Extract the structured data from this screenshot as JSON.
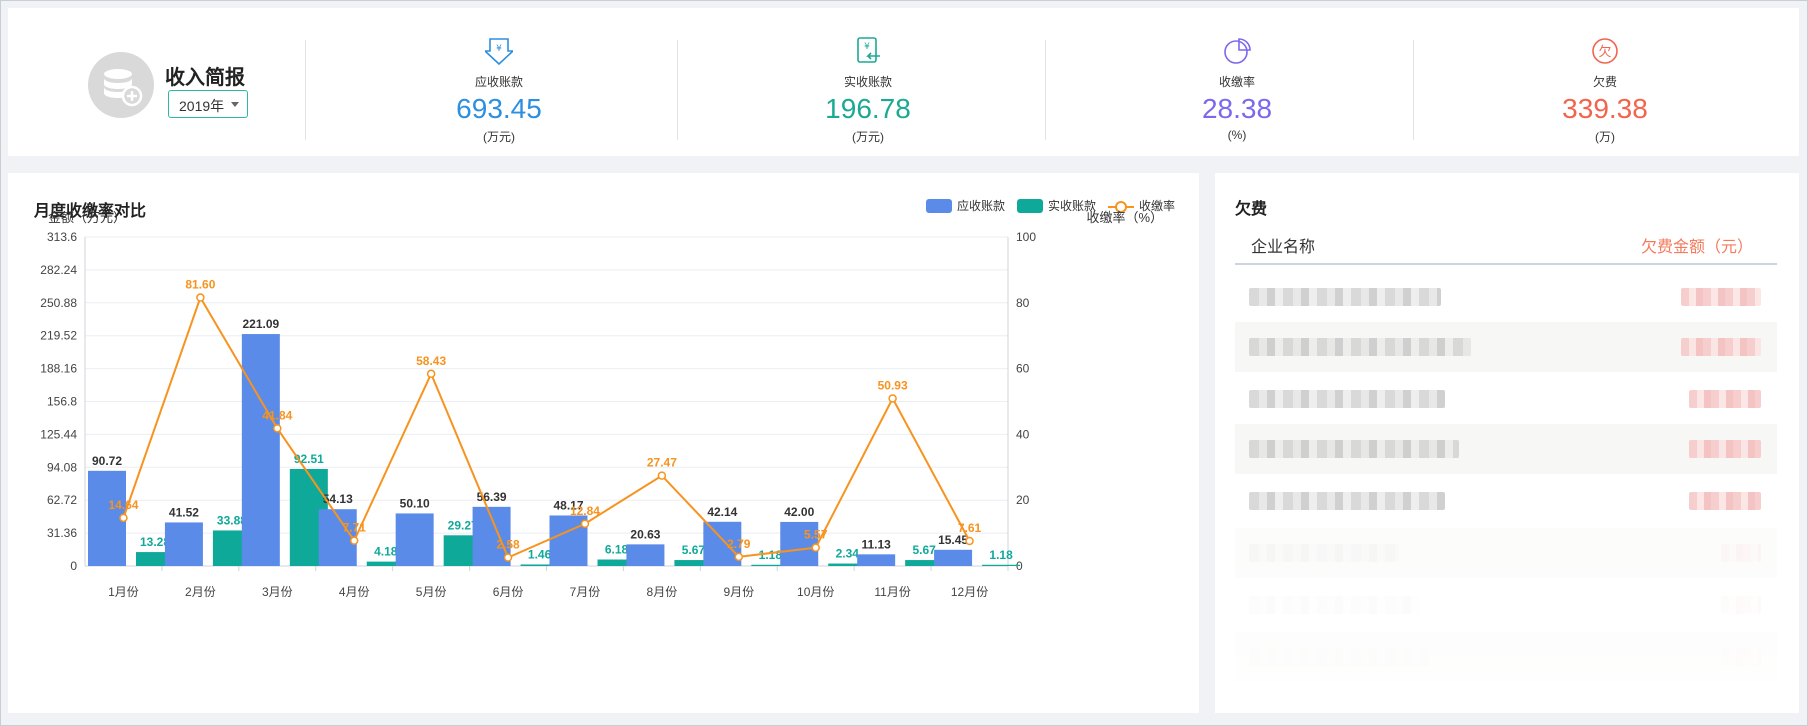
{
  "summary": {
    "title": "收入简报",
    "year": "2019年",
    "stats": [
      {
        "label": "应收账款",
        "value": "693.45",
        "unit": "(万元)",
        "color": "#2d8fe0",
        "icon": "receivable-icon"
      },
      {
        "label": "实收账款",
        "value": "196.78",
        "unit": "(万元)",
        "color": "#1aaa93",
        "icon": "received-icon"
      },
      {
        "label": "收缴率",
        "value": "28.38",
        "unit": "(%)",
        "color": "#7b68ee",
        "icon": "pie-chart-icon"
      },
      {
        "label": "欠费",
        "value": "339.38",
        "unit": "(万)",
        "color": "#f2644e",
        "icon": "arrears-icon"
      }
    ]
  },
  "chart_data": {
    "type": "bar",
    "title": "月度收缴率对比",
    "ylabel": "金额（万元）",
    "y2label": "收缴率（%）",
    "categories": [
      "1月份",
      "2月份",
      "3月份",
      "4月份",
      "5月份",
      "6月份",
      "7月份",
      "8月份",
      "9月份",
      "10月份",
      "11月份",
      "12月份"
    ],
    "yticks": [
      "0",
      "31.36",
      "62.72",
      "94.08",
      "125.44",
      "156.8",
      "188.16",
      "219.52",
      "250.88",
      "282.24",
      "313.6"
    ],
    "ylim": [
      0,
      313.6
    ],
    "y2ticks": [
      "0",
      "20",
      "40",
      "60",
      "80",
      "100"
    ],
    "y2lim": [
      0,
      100
    ],
    "grid": true,
    "legend_position": "top-right",
    "series": [
      {
        "name": "应收账款",
        "type": "bar",
        "color": "#5b8be8",
        "values": [
          90.72,
          41.52,
          221.09,
          54.13,
          50.1,
          56.39,
          48.17,
          20.63,
          42.14,
          42.0,
          11.13,
          15.45
        ]
      },
      {
        "name": "实收账款",
        "type": "bar",
        "color": "#0fa99a",
        "values": [
          13.28,
          33.88,
          92.51,
          4.18,
          29.27,
          1.46,
          6.18,
          5.67,
          1.18,
          2.34,
          5.67,
          1.18
        ]
      },
      {
        "name": "收缴率",
        "type": "line",
        "axis": "right",
        "color": "#f7931e",
        "values": [
          14.64,
          81.6,
          41.84,
          7.71,
          58.43,
          2.58,
          12.84,
          27.47,
          2.79,
          5.57,
          50.93,
          7.61
        ]
      }
    ]
  },
  "arrears": {
    "title": "欠费",
    "col_name": "企业名称",
    "col_amount": "欠费金额（元）"
  }
}
